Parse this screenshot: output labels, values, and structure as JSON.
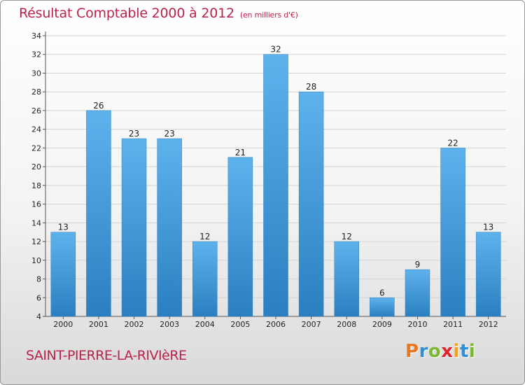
{
  "header": {
    "title": "Résultat Comptable 2000 à 2012",
    "subtitle": "(en milliers d'€)"
  },
  "place_name": "SAINT-PIERRE-LA-RIVIèRE",
  "logo": {
    "letters": [
      "P",
      "r",
      "o",
      "x",
      "i",
      "t",
      "i"
    ],
    "colors": [
      "#e87722",
      "#2e8fd6",
      "#7cb82f",
      "#e0242a",
      "#f3a21b",
      "#2e8fd6",
      "#7cb82f"
    ]
  },
  "colors": {
    "bar_top": "#5eb2ec",
    "bar_bottom": "#2a7fc1",
    "title": "#b8234a"
  },
  "chart_data": {
    "type": "bar",
    "title": "Résultat Comptable 2000 à 2012",
    "subtitle": "(en milliers d'€)",
    "categories": [
      "2000",
      "2001",
      "2002",
      "2003",
      "2004",
      "2005",
      "2006",
      "2007",
      "2008",
      "2009",
      "2010",
      "2011",
      "2012"
    ],
    "values": [
      13,
      26,
      23,
      23,
      12,
      21,
      32,
      28,
      12,
      6,
      9,
      22,
      13
    ],
    "ylim": [
      4,
      34
    ],
    "yticks": [
      4,
      6,
      8,
      10,
      12,
      14,
      16,
      18,
      20,
      22,
      24,
      26,
      28,
      30,
      32,
      34
    ],
    "grid": true,
    "data_labels": true
  }
}
